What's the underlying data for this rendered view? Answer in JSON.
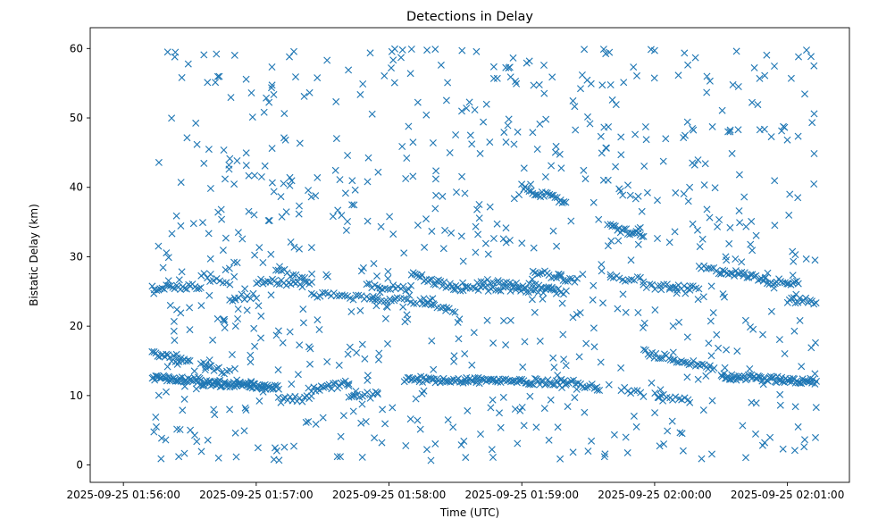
{
  "chart_data": {
    "type": "scatter",
    "title": "Detections in Delay",
    "xlabel": "Time (UTC)",
    "ylabel": "Bistatic Delay (km)",
    "marker": "x",
    "color": "#1f77b4",
    "xlim": [
      "2025-09-25 01:55:45",
      "2025-09-25 02:01:28"
    ],
    "ylim": [
      -2.5,
      63
    ],
    "x_ticks": [
      "2025-09-25 01:56:00",
      "2025-09-25 01:57:00",
      "2025-09-25 01:58:00",
      "2025-09-25 01:59:00",
      "2025-09-25 02:00:00",
      "2025-09-25 02:01:00"
    ],
    "y_ticks": [
      0,
      10,
      20,
      30,
      40,
      50,
      60
    ],
    "time_span": [
      "2025-09-25 01:56:13",
      "2025-09-25 02:01:13"
    ],
    "grid": false,
    "legend": "none",
    "series": [
      {
        "tracks": [
          {
            "start": [
              "2025-09-25 01:56:13",
              12.5
            ],
            "end": [
              "2025-09-25 01:56:35",
              12.2
            ],
            "count": 40
          },
          {
            "start": [
              "2025-09-25 01:56:35",
              11.8
            ],
            "end": [
              "2025-09-25 01:57:10",
              11.2
            ],
            "count": 70
          },
          {
            "start": [
              "2025-09-25 01:56:13",
              16.0
            ],
            "end": [
              "2025-09-25 01:56:30",
              14.8
            ],
            "count": 22
          },
          {
            "start": [
              "2025-09-25 01:56:35",
              14.5
            ],
            "end": [
              "2025-09-25 01:56:48",
              13.3
            ],
            "count": 12
          },
          {
            "start": [
              "2025-09-25 01:57:10",
              9.3
            ],
            "end": [
              "2025-09-25 01:57:25",
              9.6
            ],
            "count": 15
          },
          {
            "start": [
              "2025-09-25 01:57:25",
              10.8
            ],
            "end": [
              "2025-09-25 01:57:42",
              11.8
            ],
            "count": 20
          },
          {
            "start": [
              "2025-09-25 01:57:42",
              9.9
            ],
            "end": [
              "2025-09-25 01:57:55",
              10.1
            ],
            "count": 12
          },
          {
            "start": [
              "2025-09-25 01:58:07",
              12.4
            ],
            "end": [
              "2025-09-25 01:59:20",
              11.9
            ],
            "count": 100
          },
          {
            "start": [
              "2025-09-25 01:59:20",
              12.0
            ],
            "end": [
              "2025-09-25 01:59:35",
              11.2
            ],
            "count": 15
          },
          {
            "start": [
              "2025-09-25 01:59:45",
              10.8
            ],
            "end": [
              "2025-09-25 01:59:55",
              10.2
            ],
            "count": 8
          },
          {
            "start": [
              "2025-09-25 01:59:55",
              16.2
            ],
            "end": [
              "2025-09-25 02:00:27",
              14.0
            ],
            "count": 35
          },
          {
            "start": [
              "2025-09-25 02:00:00",
              10.0
            ],
            "end": [
              "2025-09-25 02:00:15",
              9.6
            ],
            "count": 12
          },
          {
            "start": [
              "2025-09-25 02:00:30",
              12.8
            ],
            "end": [
              "2025-09-25 02:01:13",
              12.0
            ],
            "count": 70
          },
          {
            "start": [
              "2025-09-25 01:56:13",
              25.5
            ],
            "end": [
              "2025-09-25 01:56:35",
              25.8
            ],
            "count": 25
          },
          {
            "start": [
              "2025-09-25 01:56:35",
              27.5
            ],
            "end": [
              "2025-09-25 01:56:48",
              26.3
            ],
            "count": 10
          },
          {
            "start": [
              "2025-09-25 01:56:48",
              24.0
            ],
            "end": [
              "2025-09-25 01:57:00",
              24.4
            ],
            "count": 10
          },
          {
            "start": [
              "2025-09-25 01:57:00",
              26.5
            ],
            "end": [
              "2025-09-25 01:57:25",
              26.0
            ],
            "count": 25
          },
          {
            "start": [
              "2025-09-25 01:57:10",
              28.0
            ],
            "end": [
              "2025-09-25 01:57:22",
              26.8
            ],
            "count": 10
          },
          {
            "start": [
              "2025-09-25 01:57:25",
              24.6
            ],
            "end": [
              "2025-09-25 01:57:55",
              24.0
            ],
            "count": 25
          },
          {
            "start": [
              "2025-09-25 01:57:50",
              25.8
            ],
            "end": [
              "2025-09-25 01:58:10",
              25.4
            ],
            "count": 18
          },
          {
            "start": [
              "2025-09-25 01:57:55",
              23.9
            ],
            "end": [
              "2025-09-25 01:58:20",
              23.6
            ],
            "count": 18
          },
          {
            "start": [
              "2025-09-25 01:58:10",
              27.5
            ],
            "end": [
              "2025-09-25 01:58:30",
              25.5
            ],
            "count": 25
          },
          {
            "start": [
              "2025-09-25 01:58:15",
              23.2
            ],
            "end": [
              "2025-09-25 01:58:30",
              22.0
            ],
            "count": 12
          },
          {
            "start": [
              "2025-09-25 01:58:30",
              25.5
            ],
            "end": [
              "2025-09-25 01:59:20",
              25.0
            ],
            "count": 45
          },
          {
            "start": [
              "2025-09-25 01:58:40",
              26.5
            ],
            "end": [
              "2025-09-25 01:59:15",
              25.5
            ],
            "count": 25
          },
          {
            "start": [
              "2025-09-25 01:59:00",
              40.0
            ],
            "end": [
              "2025-09-25 01:59:20",
              37.8
            ],
            "count": 25
          },
          {
            "start": [
              "2025-09-25 01:59:05",
              28.0
            ],
            "end": [
              "2025-09-25 01:59:25",
              26.5
            ],
            "count": 20
          },
          {
            "start": [
              "2025-09-25 01:59:40",
              27.0
            ],
            "end": [
              "2025-09-25 01:59:55",
              26.6
            ],
            "count": 12
          },
          {
            "start": [
              "2025-09-25 01:59:40",
              34.3
            ],
            "end": [
              "2025-09-25 01:59:55",
              33.0
            ],
            "count": 20
          },
          {
            "start": [
              "2025-09-25 01:59:55",
              25.8
            ],
            "end": [
              "2025-09-25 02:00:20",
              25.3
            ],
            "count": 20
          },
          {
            "start": [
              "2025-09-25 02:00:20",
              28.5
            ],
            "end": [
              "2025-09-25 02:00:30",
              27.8
            ],
            "count": 10
          },
          {
            "start": [
              "2025-09-25 02:00:30",
              28.0
            ],
            "end": [
              "2025-09-25 02:00:50",
              26.8
            ],
            "count": 25
          },
          {
            "start": [
              "2025-09-25 02:00:50",
              26.5
            ],
            "end": [
              "2025-09-25 02:01:05",
              26.3
            ],
            "count": 18
          },
          {
            "start": [
              "2025-09-25 02:01:00",
              23.8
            ],
            "end": [
              "2025-09-25 02:01:13",
              23.5
            ],
            "count": 15
          }
        ],
        "sample_points": [
          [
            "2025-09-25 01:56:17",
            0.9
          ],
          [
            "2025-09-25 01:56:20",
            59.5
          ],
          [
            "2025-09-25 01:56:25",
            1.2
          ],
          [
            "2025-09-25 01:56:43",
            1.0
          ],
          [
            "2025-09-25 01:56:42",
            59.2
          ],
          [
            "2025-09-25 01:56:48",
            8.0
          ],
          [
            "2025-09-25 01:57:08",
            0.8
          ],
          [
            "2025-09-25 01:57:15",
            58.8
          ],
          [
            "2025-09-25 01:57:32",
            58.3
          ],
          [
            "2025-09-25 01:57:38",
            1.2
          ],
          [
            "2025-09-25 01:57:57",
            8.0
          ],
          [
            "2025-09-25 01:58:01",
            57.2
          ],
          [
            "2025-09-25 01:58:33",
            59.7
          ],
          [
            "2025-09-25 01:58:47",
            1.1
          ],
          [
            "2025-09-25 01:58:58",
            3.1
          ],
          [
            "2025-09-25 01:59:10",
            57.6
          ],
          [
            "2025-09-25 01:59:37",
            59.9
          ],
          [
            "2025-09-25 01:59:47",
            4.0
          ],
          [
            "2025-09-25 02:00:00",
            59.7
          ],
          [
            "2025-09-25 02:00:08",
            6.3
          ],
          [
            "2025-09-25 02:00:25",
            55.3
          ],
          [
            "2025-09-25 02:00:37",
            59.6
          ],
          [
            "2025-09-25 02:00:58",
            2.3
          ],
          [
            "2025-09-25 02:01:05",
            58.8
          ],
          [
            "2025-09-25 02:01:12",
            57.5
          ],
          [
            "2025-09-25 02:01:13",
            8.3
          ]
        ],
        "background_noise": {
          "count": 740,
          "y_range": [
            0.5,
            60
          ],
          "x_range": [
            "2025-09-25 01:56:13",
            "2025-09-25 02:01:13"
          ]
        }
      }
    ]
  }
}
